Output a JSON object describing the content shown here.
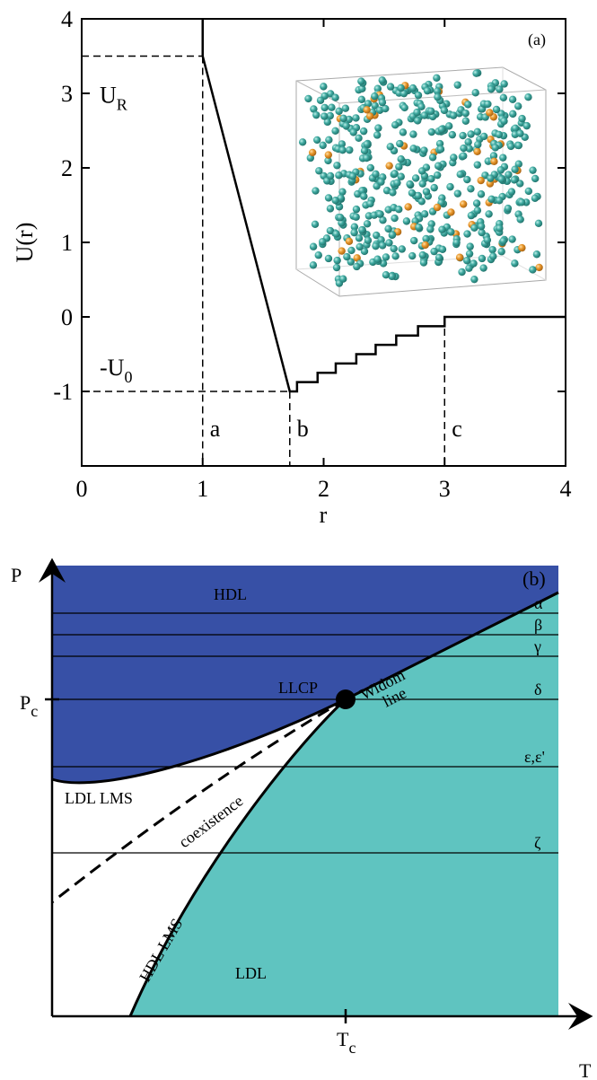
{
  "chart_data": {
    "type": "line",
    "panel_label": "(a)",
    "x_label": "r",
    "y_label": "U(r)",
    "xlim": [
      0,
      4
    ],
    "ylim": [
      -2,
      4
    ],
    "xticks": [
      0,
      1,
      2,
      3,
      4
    ],
    "yticks": [
      -1,
      0,
      1,
      2,
      3,
      4
    ],
    "series": [
      {
        "color": "#000000",
        "x": [
          1,
          1,
          1.72,
          1.78,
          1.78,
          1.95,
          1.95,
          2.1,
          2.1,
          2.27,
          2.27,
          2.43,
          2.43,
          2.6,
          2.6,
          2.78,
          2.78,
          3,
          3,
          4
        ],
        "values": [
          4,
          3.5,
          -1,
          -1,
          -0.875,
          -0.875,
          -0.75,
          -0.75,
          -0.625,
          -0.625,
          -0.5,
          -0.5,
          -0.375,
          -0.375,
          -0.25,
          -0.25,
          -0.125,
          -0.125,
          0,
          0
        ]
      }
    ],
    "hlines": [
      {
        "text": "U",
        "sub": "R",
        "y": 3.5,
        "x_end": 1
      },
      {
        "text": "-U",
        "sub": "0",
        "y": -1,
        "x_end": 1.72
      }
    ],
    "vlines": [
      {
        "label": "a",
        "x": 1,
        "y_top": 3.5
      },
      {
        "label": "b",
        "x": 1.72,
        "y_top": -1
      },
      {
        "label": "c",
        "x": 3,
        "y_top": 0
      }
    ]
  },
  "phase_diagram": {
    "panel_label": "(b)",
    "x_axis": "T",
    "y_axis": "P",
    "critical_T": {
      "text": "T",
      "sub": "c"
    },
    "critical_P": {
      "text": "P",
      "sub": "c"
    },
    "regions": [
      "HDL",
      "LDL"
    ],
    "isobars": [
      "α",
      "β",
      "γ",
      "δ",
      "ε,ε'",
      "ζ"
    ],
    "curves": [
      "LDL LMS",
      "coexistence",
      "HDL LMS"
    ],
    "widom": [
      "Widom",
      "line"
    ],
    "critical_point": "LLCP"
  }
}
